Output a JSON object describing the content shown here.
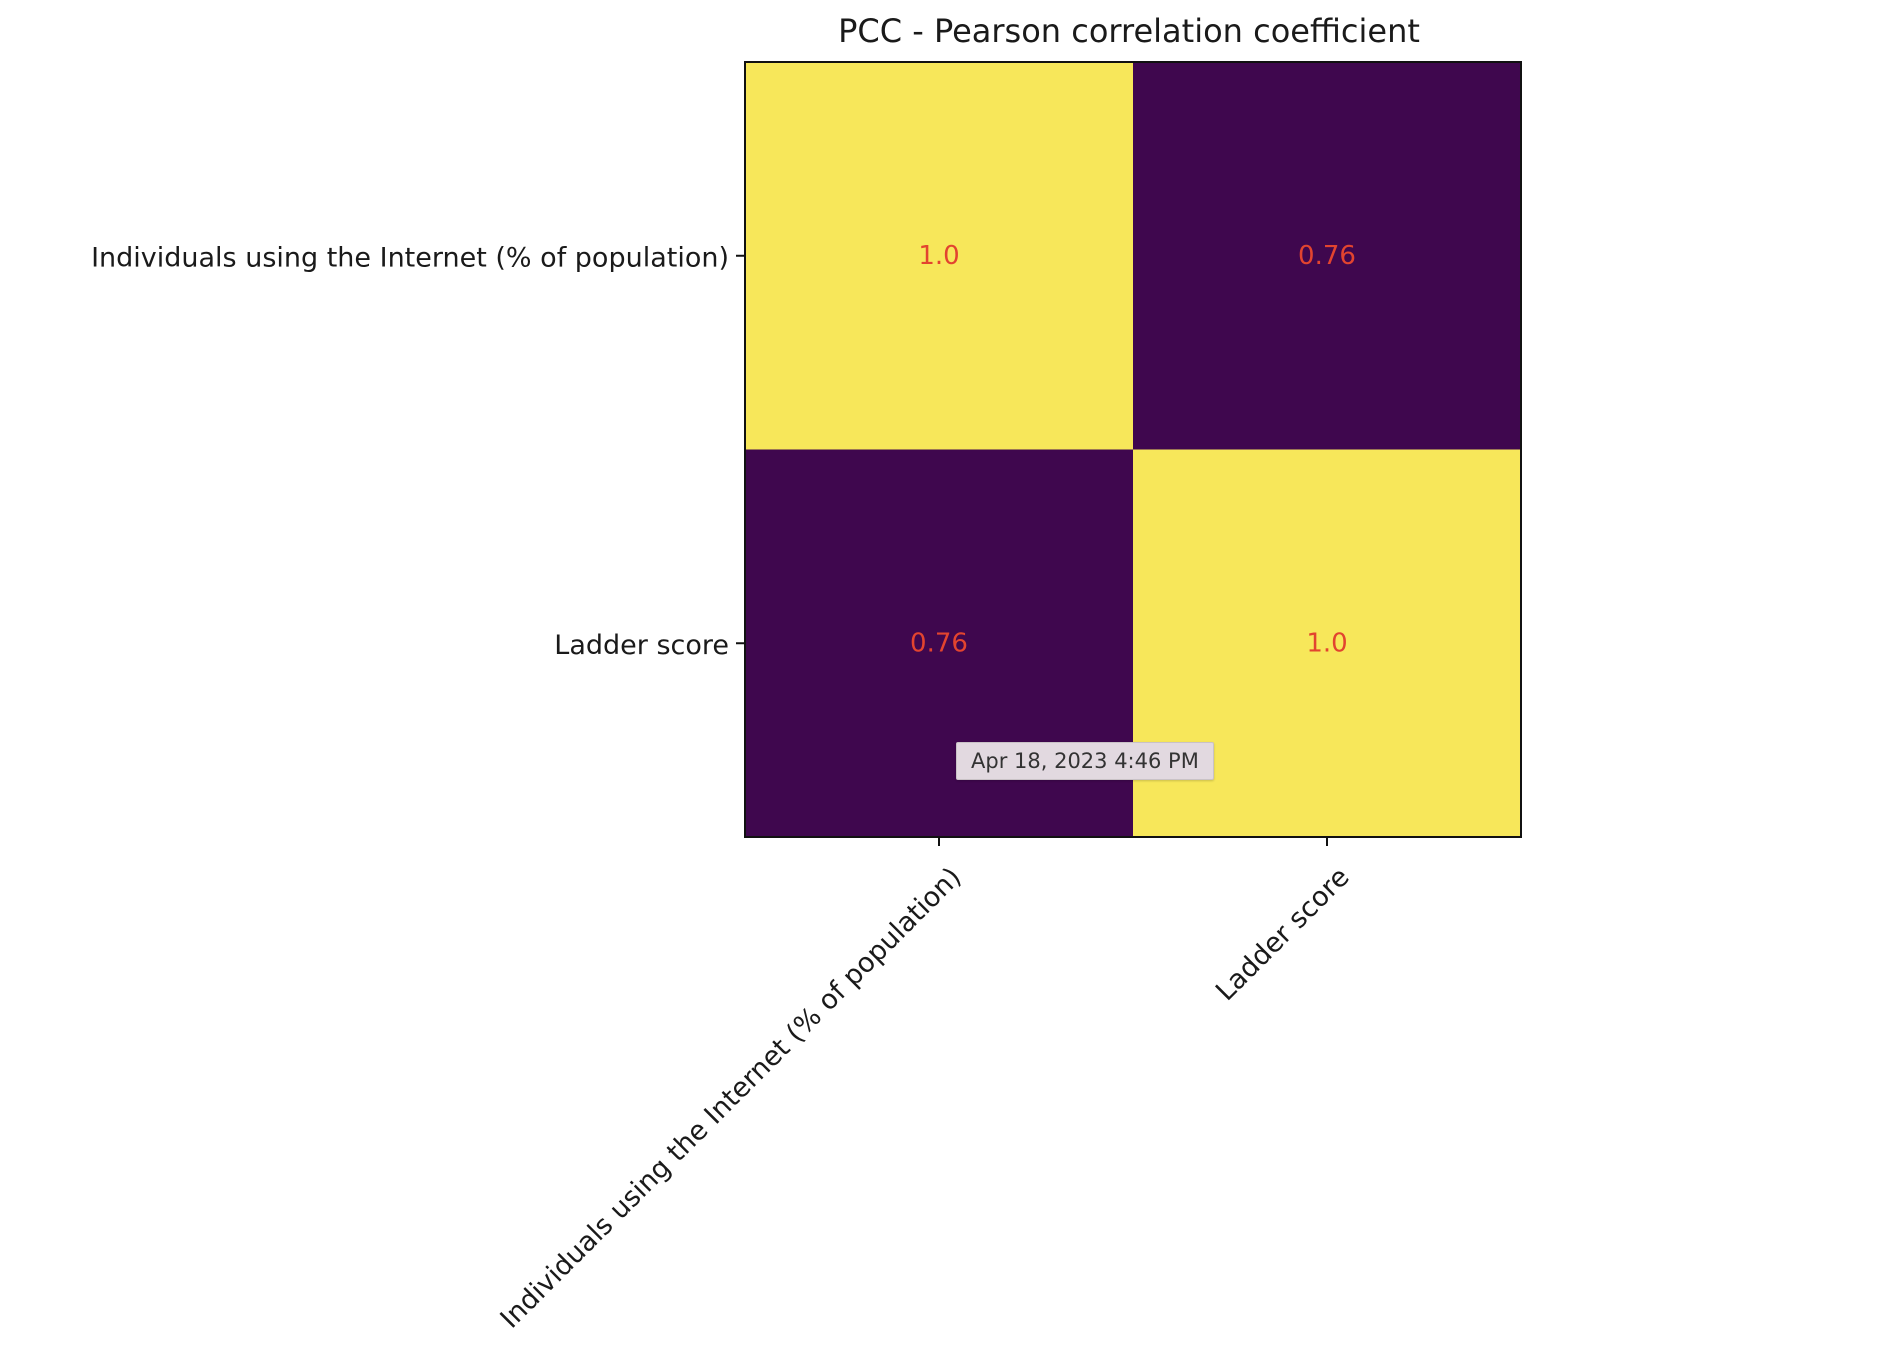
{
  "chart_data": {
    "type": "heatmap",
    "title": "PCC - Pearson correlation coefficient",
    "x_categories": [
      "Individuals using the Internet (% of population)",
      "Ladder score"
    ],
    "y_categories": [
      "Individuals using the Internet (% of population)",
      "Ladder score"
    ],
    "values": [
      [
        1.0,
        0.76
      ],
      [
        0.76,
        1.0
      ]
    ],
    "cell_labels": [
      [
        "1.0",
        "0.76"
      ],
      [
        "0.76",
        "1.0"
      ]
    ],
    "colormap": "viridis",
    "high_color": "#f7e75a",
    "low_color": "#3f074e",
    "annotation_color": "#e2442f",
    "grid": false
  },
  "tooltip": {
    "text": "Apr 18, 2023 4:46 PM"
  }
}
